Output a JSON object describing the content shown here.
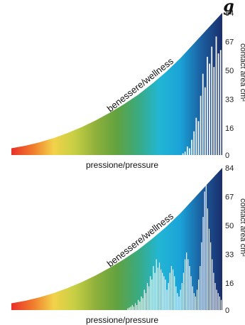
{
  "top_fragment": "g",
  "colors": {
    "gradient": [
      "#e8302a",
      "#f07a2c",
      "#f2d24a",
      "#c7cf44",
      "#8fb03c",
      "#62a23f",
      "#3aaa7f",
      "#22b6d4",
      "#1aa3d8",
      "#1b5fa0",
      "#1b2e6b"
    ],
    "bars": "#ffffff"
  },
  "chart_data": [
    {
      "type": "area",
      "diagonal_label": "benessere/wellness",
      "xlabel": "pressione/pressure",
      "ylabel": "contact area cm²",
      "ylim": [
        0,
        84
      ],
      "yticks": [
        "0",
        "16",
        "33",
        "50",
        "67",
        "84"
      ],
      "curve_height": [
        4,
        5.5,
        7.5,
        10,
        13,
        16.5,
        20.5,
        25,
        30,
        35.5,
        42,
        49,
        57,
        66,
        75,
        84
      ],
      "bar_start": 0.8,
      "bar_values": [
        0,
        1,
        2,
        5,
        4,
        9,
        14,
        22,
        20,
        35,
        48,
        40,
        58,
        54,
        64,
        52,
        70,
        60,
        62
      ]
    },
    {
      "type": "area",
      "diagonal_label": "benessere/wellness",
      "xlabel": "pressione/pressure",
      "ylabel": "contact area cm²",
      "ylim": [
        0,
        84
      ],
      "yticks": [
        "0",
        "16",
        "33",
        "50",
        "67",
        "84"
      ],
      "curve_height": [
        4,
        5.5,
        7.5,
        10,
        13,
        16.5,
        20.5,
        25,
        30,
        35.5,
        42,
        49,
        57,
        66,
        75,
        84
      ],
      "bar_start": 0.55,
      "bar_values": [
        1,
        1.5,
        2,
        3,
        2,
        4,
        3,
        6,
        5,
        8,
        7,
        12,
        10,
        16,
        14,
        20,
        18,
        26,
        22,
        30,
        25,
        28,
        24,
        22,
        20,
        18,
        12,
        16,
        22,
        26,
        24,
        20,
        14,
        10,
        8,
        12,
        16,
        22,
        30,
        34,
        30,
        26,
        20,
        14,
        10,
        8,
        12,
        18,
        26,
        40,
        55,
        70,
        82,
        60,
        48,
        40,
        30,
        22,
        16,
        12,
        10,
        8,
        6
      ]
    }
  ]
}
